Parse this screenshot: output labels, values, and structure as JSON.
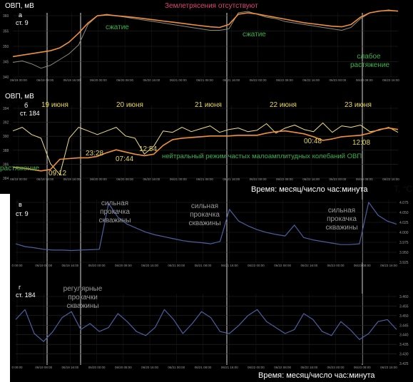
{
  "header_note": "Землетрясения отсутствуют",
  "xaxis_caption": "Время: месяц/число час:минута",
  "temp_unit_label": "T, °C",
  "colors": {
    "orp_line": "#8a8a78",
    "orp_fit": "#f0903c",
    "orp_b_line": "#f0e080",
    "temp_line": "#4e5fa0",
    "green_text": "#39b24a",
    "yellow_text": "#e8d84c",
    "pink_text": "#e0447a",
    "white_text": "#ffffff",
    "gray_text": "#9a9a9a"
  },
  "chart_data": [
    {
      "panel_label": "а",
      "well": "ст. 9",
      "ylabel": "ОВП, мВ",
      "type": "line",
      "y_ticks": [
        "340",
        "345",
        "350",
        "355",
        "360"
      ],
      "x_ticks": [
        "06/19 00:00",
        "06/19 08:00",
        "06/19 16:00",
        "06/20 00:00",
        "06/20 08:00",
        "06/20 16:00",
        "06/21 00:00",
        "06/21 08:00",
        "06/21 16:00",
        "06/22 00:00",
        "06/22 08:00",
        "06/22 16:00",
        "06/23 00:00",
        "06/23 08:00",
        "06/23 16:00"
      ],
      "annotations": [
        "сжатие",
        "сжатие",
        "слабое растяжение"
      ],
      "series": [
        {
          "values": [
            345,
            345.5,
            344.5,
            343,
            344,
            346,
            348,
            351,
            358,
            361,
            361.5,
            361,
            360.5,
            360,
            359.5,
            359,
            358.5,
            358,
            357.5,
            357,
            356.5,
            356,
            356,
            356.5,
            362,
            362.5,
            361.5,
            360.5,
            360,
            359,
            358.5,
            358,
            357.5,
            357,
            356.5,
            356,
            357,
            360,
            362,
            362.5,
            363,
            362.5
          ]
        },
        {
          "values": [
            347,
            347.5,
            348,
            348.5,
            349,
            350,
            352,
            355,
            358.5,
            361,
            361.3,
            361,
            360.7,
            360.4,
            360,
            359.6,
            359.2,
            358.8,
            358.4,
            358,
            357.6,
            357.2,
            357,
            358,
            361.5,
            362,
            361.6,
            361,
            360.4,
            359.8,
            359.2,
            358.6,
            358.2,
            357.8,
            357.4,
            357.2,
            358,
            360.5,
            362,
            362.6,
            362.8,
            362.6
          ]
        }
      ]
    },
    {
      "panel_label": "б",
      "well": "ст. 184",
      "ylabel": "ОВП, мВ",
      "type": "line",
      "y_ticks": [
        "384",
        "386",
        "388",
        "390",
        "392",
        "394"
      ],
      "x_ticks": [
        "06/19 00:00",
        "06/19 08:00",
        "06/19 16:00",
        "06/20 00:00",
        "06/20 08:00",
        "06/20 16:00",
        "06/21 00:00",
        "06/21 08:00",
        "06/21 16:00",
        "06/22 00:00",
        "06/22 08:00",
        "06/22 16:00",
        "06/23 00:00",
        "06/23 08:00",
        "06/23 16:00"
      ],
      "date_labels": [
        "19 июня",
        "20 июня",
        "21 июня",
        "22 июня",
        "23 июня"
      ],
      "time_labels": [
        "09:12",
        "23:28",
        "07:44",
        "12:54",
        "00:48",
        "12:08"
      ],
      "annotations": [
        "растяжение",
        "нейтральный режим частых малоамплитудных колебаний ОВП"
      ],
      "series": [
        {
          "values": [
            390.5,
            391,
            390,
            389.5,
            386,
            384.5,
            389.5,
            391,
            390.5,
            390,
            390.5,
            391,
            389.8,
            389.5,
            387.3,
            388.4,
            390.5,
            390.3,
            391,
            390.4,
            390.8,
            391.2,
            390.3,
            390.7,
            390.9,
            390.4,
            390.6,
            391.5,
            390.2,
            390.9,
            391.3,
            390.7,
            390.4,
            391.6,
            390.3,
            391.2,
            391,
            391.3,
            390.4,
            390.6,
            391,
            390.3
          ]
        },
        {
          "values": [
            385.5,
            385.4,
            385.2,
            385,
            385.2,
            386.6,
            386.7,
            386.8,
            386.8,
            387,
            387.5,
            387.9,
            387.6,
            387.3,
            387.1,
            387.3,
            388.5,
            389.3,
            389.5,
            389.6,
            389.7,
            389.8,
            389.8,
            389.8,
            389.9,
            389.9,
            389.9,
            390.2,
            390.4,
            390.5,
            390.3,
            390.1,
            389.7,
            389.2,
            389.4,
            389.7,
            389.8,
            389.9,
            390.2,
            390.7,
            390.9,
            390.7
          ]
        }
      ]
    },
    {
      "panel_label": "в",
      "well": "ст. 9",
      "ylabel": "",
      "type": "line",
      "y_ticks": [
        "3.925",
        "3.950",
        "3.975",
        "4.000",
        "4.025",
        "4.050",
        "4.075"
      ],
      "x_ticks": [
        "0 00:00",
        "06/19 08:00",
        "06/19 16:00",
        "06/20 00:00",
        "06/20 08:00",
        "06/20 16:00",
        "06/21 00:00",
        "06/21 08:00",
        "06/21 16:00",
        "06/22 00:00",
        "06/22 08:00",
        "06/22 16:00",
        "06/23 00:00",
        "06/23 08:00",
        "06/23 16:00"
      ],
      "annotations": [
        "сильная прокачка скважины",
        "сильная прокачка скважины",
        "сильная прокачка скважины"
      ],
      "series": [
        {
          "values": [
            3.972,
            3.965,
            3.962,
            3.958,
            3.956,
            3.956,
            3.955,
            3.956,
            3.957,
            3.958,
            4.075,
            4.04,
            4.022,
            4.012,
            4.002,
            3.995,
            3.99,
            3.985,
            3.98,
            3.977,
            3.975,
            3.972,
            3.978,
            4.06,
            4.03,
            4.018,
            4.008,
            4.001,
            3.996,
            3.992,
            4.02,
            3.988,
            3.982,
            3.978,
            3.974,
            3.97,
            3.97,
            3.972,
            4.078,
            4.045,
            4.03,
            4.022
          ]
        }
      ]
    },
    {
      "panel_label": "г",
      "well": "ст. 184",
      "ylabel": "",
      "type": "line",
      "y_ticks": [
        "3.425",
        "3.430",
        "3.435",
        "3.440",
        "3.445",
        "3.450",
        "3.455",
        "3.460"
      ],
      "x_ticks": [
        "0 00:00",
        "06/19 08:00",
        "06/19 16:00",
        "06/20 00:00",
        "06/20 08:00",
        "06/20 16:00",
        "06/21 00:00",
        "06/21 08:00",
        "06/21 16:00",
        "06/22 00:00",
        "06/22 08:00",
        "06/22 16:00",
        "06/23 00:00",
        "06/23 08:00",
        "06/23 16:00"
      ],
      "annotations": [
        "регулярные прокачки скважины"
      ],
      "series": [
        {
          "values": [
            3.447,
            3.452,
            3.44,
            3.436,
            3.441,
            3.448,
            3.451,
            3.442,
            3.445,
            3.441,
            3.443,
            3.45,
            3.446,
            3.441,
            3.439,
            3.443,
            3.452,
            3.447,
            3.44,
            3.445,
            3.451,
            3.448,
            3.441,
            3.44,
            3.444,
            3.449,
            3.452,
            3.446,
            3.443,
            3.44,
            3.442,
            3.45,
            3.447,
            3.441,
            3.439,
            3.446,
            3.442,
            3.437,
            3.44,
            3.446,
            3.447,
            3.442
          ]
        }
      ]
    }
  ]
}
